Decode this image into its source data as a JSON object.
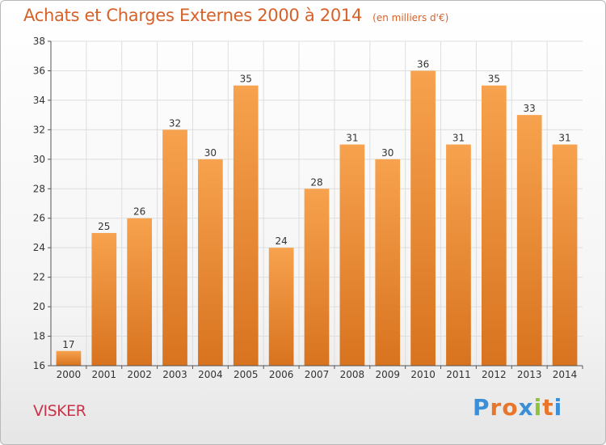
{
  "header": {
    "title": "Achats et Charges Externes 2000 à 2014",
    "subtitle": "(en milliers d'€)"
  },
  "footer": {
    "commune": "VISKER",
    "logo_letters": [
      "P",
      "r",
      "o",
      "x",
      "i",
      "t",
      "i"
    ],
    "logo_colors": [
      "#3a8fd8",
      "#e8762a",
      "#e8762a",
      "#3a8fd8",
      "#8cc43c",
      "#e8762a",
      "#3a8fd8"
    ]
  },
  "colors": {
    "bar_top": "#f7a24e",
    "bar_bottom": "#d8731f",
    "grid": "#dedede",
    "axis": "#555555",
    "text": "#333333"
  },
  "chart_data": {
    "type": "bar",
    "categories": [
      "2000",
      "2001",
      "2002",
      "2003",
      "2004",
      "2005",
      "2006",
      "2007",
      "2008",
      "2009",
      "2010",
      "2011",
      "2012",
      "2013",
      "2014"
    ],
    "values": [
      17,
      25,
      26,
      32,
      30,
      35,
      24,
      28,
      31,
      30,
      36,
      31,
      35,
      33,
      31
    ],
    "title": "Achats et Charges Externes 2000 à 2014",
    "xlabel": "",
    "ylabel": "",
    "ylim": [
      16,
      38
    ],
    "yticks": [
      16,
      18,
      20,
      22,
      24,
      26,
      28,
      30,
      32,
      34,
      36,
      38
    ],
    "grid": true,
    "data_labels": true
  }
}
